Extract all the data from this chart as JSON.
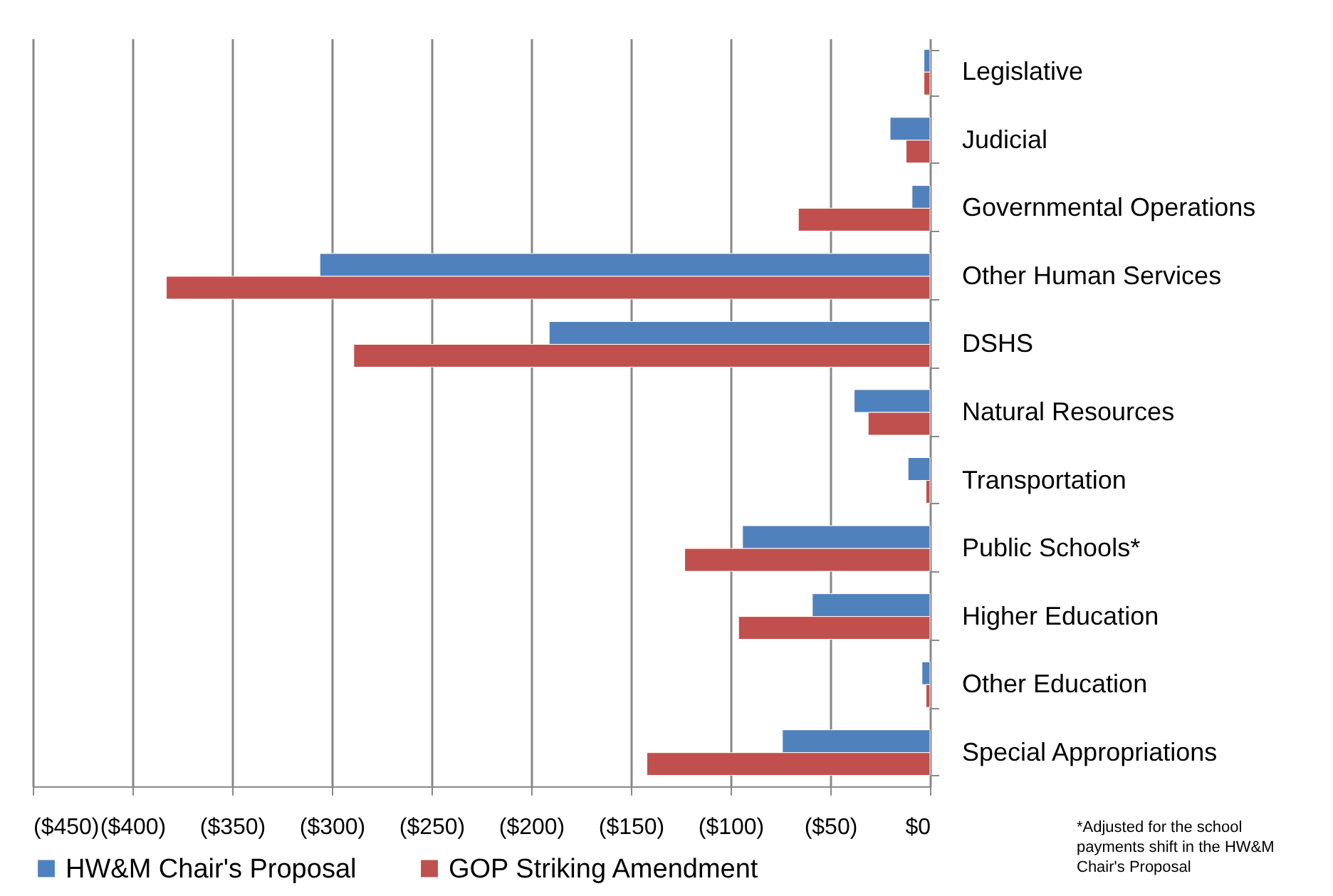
{
  "chart_data": {
    "type": "bar",
    "orientation": "horizontal",
    "categories": [
      "Legislative",
      "Judicial",
      "Governmental Operations",
      "Other Human Services",
      "DSHS",
      "Natural Resources",
      "Transportation",
      "Public Schools*",
      "Higher Education",
      "Other Education",
      "Special Appropriations"
    ],
    "series": [
      {
        "name": "HW&M Chair's Proposal",
        "color": "#4f81bd",
        "values": [
          -3,
          -20,
          -9,
          -306,
          -191,
          -38,
          -11,
          -94,
          -59,
          -4,
          -74
        ]
      },
      {
        "name": "GOP Striking Amendment",
        "color": "#c0504d",
        "values": [
          -3,
          -12,
          -66,
          -383,
          -289,
          -31,
          -2,
          -123,
          -96,
          -2,
          -142
        ]
      }
    ],
    "xlim": [
      -450,
      0
    ],
    "xticks": [
      {
        "value": -450,
        "label": "($450)"
      },
      {
        "value": -400,
        "label": "($400)"
      },
      {
        "value": -350,
        "label": "($350)"
      },
      {
        "value": -300,
        "label": "($300)"
      },
      {
        "value": -250,
        "label": "($250)"
      },
      {
        "value": -200,
        "label": "($200)"
      },
      {
        "value": -150,
        "label": "($150)"
      },
      {
        "value": -100,
        "label": "($100)"
      },
      {
        "value": -50,
        "label": "($50)"
      },
      {
        "value": 0,
        "label": "$0"
      }
    ],
    "grid": "x",
    "legend": "bottom",
    "annotations": [
      "*Adjusted for the school payments shift in the HW&M Chair's Proposal"
    ]
  }
}
